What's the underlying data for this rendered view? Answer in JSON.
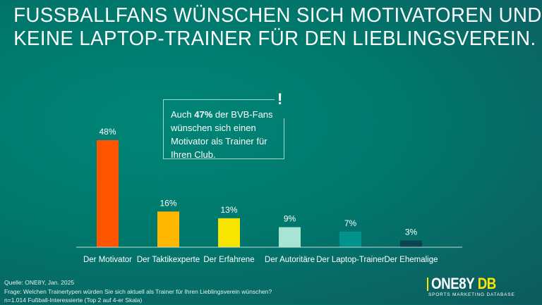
{
  "title": {
    "line1": "FUSSBALLFANS WÜNSCHEN SICH MOTIVATOREN UND",
    "line2": "KEINE LAPTOP-TRAINER FÜR DEN LIEBLINGSVEREIN."
  },
  "callout": {
    "prefix": "Auch ",
    "highlight": "47%",
    "rest": " der BVB-Fans wünschen sich einen Motivator als Trainer für Ihren Club.",
    "icon": "exclamation-icon",
    "icon_text": "!"
  },
  "chart_data": {
    "type": "bar",
    "categories": [
      "Der Motivator",
      "Der Taktikexperte",
      "Der Erfahrene",
      "Der Autoritäre",
      "Der Laptop-Trainer",
      "Der Ehemalige"
    ],
    "values": [
      48,
      16,
      13,
      9,
      7,
      3
    ],
    "labels": [
      "48%",
      "16%",
      "13%",
      "9%",
      "7%",
      "3%"
    ],
    "colors": [
      "#ff5500",
      "#ffb700",
      "#f7e400",
      "#a8e4d2",
      "#00938c",
      "#0b4450"
    ],
    "unit": "%",
    "ylim": [
      0,
      50
    ],
    "grid": false
  },
  "footer": {
    "source": "Quelle: ONE8Y, Jan. 2025",
    "question": "Frage: Welchen Trainertypen würden Sie sich aktuell als Trainer für Ihren Lieblingsverein wünschen?",
    "sample": "n=1.014 Fußball-Interessierte (Top 2 auf 4-er Skala)"
  },
  "logo": {
    "name": "ONE8Y",
    "db": "DB",
    "tagline": "SPORTS MARKETING DATABASE",
    "accent": "#ffe600"
  }
}
